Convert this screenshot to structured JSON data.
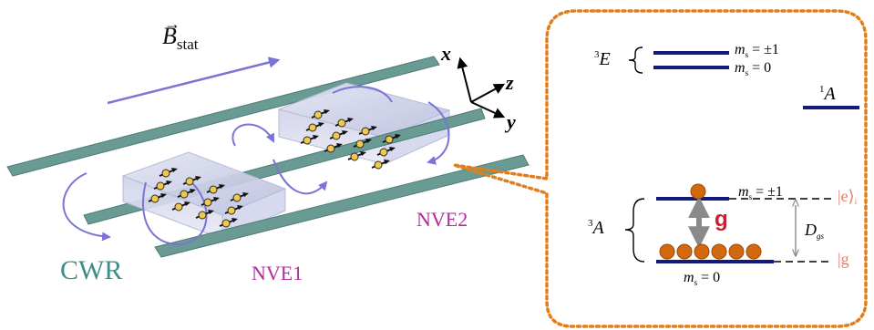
{
  "left_figure": {
    "field_symbol": "B",
    "field_subscript": "stat",
    "axes": {
      "x": "x",
      "y": "y",
      "z": "z"
    },
    "resonator_label": "CWR",
    "ensemble_1_label": "NVE1",
    "ensemble_2_label": "NVE2"
  },
  "energy_diagram": {
    "excited_state_label": "E",
    "excited_state_superscript": "3",
    "excited_ms1": "= ±1",
    "excited_ms0": "= 0",
    "singlet_label": "A",
    "singlet_superscript": "1",
    "ground_state_label": "A",
    "ground_state_superscript": "3",
    "ground_ms1": "= ±1",
    "ground_ms0": "= 0",
    "ms_symbol": "m",
    "ms_subscript": "s",
    "coupling_label": "g",
    "splitting_symbol": "D",
    "splitting_subscript": "gs",
    "ket_excited": "|e⟩",
    "ket_excited_subscript": "i",
    "ket_ground": "|g"
  },
  "colors": {
    "strip": "#6a9a94",
    "strip_edge": "#4d7c76",
    "loop": "#7b74d6",
    "level": "#15197a",
    "atom": "#d2690f",
    "callout": "#e37e1a",
    "ensemble_label": "#b42a9b",
    "resonator_label": "#3e8d88",
    "coupling_label": "#c81e2d"
  }
}
